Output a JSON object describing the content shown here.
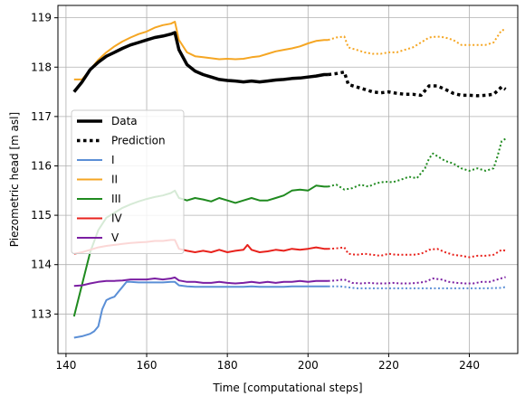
{
  "chart_data": {
    "type": "line",
    "title": "",
    "xlabel": "Time [computational steps]",
    "ylabel": "Piezometric head [m asl]",
    "xlim": [
      138,
      252
    ],
    "ylim": [
      112.2,
      119.25
    ],
    "xticks": [
      140,
      160,
      180,
      200,
      220,
      240
    ],
    "yticks": [
      113,
      114,
      115,
      116,
      117,
      118,
      119
    ],
    "grid": true,
    "legend_position": "center-left",
    "legend": [
      {
        "label": "Data",
        "style": "solid-thick",
        "color": "#000000"
      },
      {
        "label": "Prediction",
        "style": "dotted-thick",
        "color": "#000000"
      },
      {
        "label": "I",
        "style": "solid",
        "color": "#5b8fd6"
      },
      {
        "label": "II",
        "style": "solid",
        "color": "#f5a623"
      },
      {
        "label": "III",
        "style": "solid",
        "color": "#1f8a1f"
      },
      {
        "label": "IV",
        "style": "solid",
        "color": "#e8221c"
      },
      {
        "label": "V",
        "style": "solid",
        "color": "#7b1fa2"
      }
    ],
    "series": [
      {
        "name": "Data",
        "color": "#000000",
        "style": "solid-thick",
        "x": [
          142,
          144,
          146,
          148,
          150,
          152,
          154,
          156,
          158,
          160,
          162,
          164,
          166,
          167,
          168,
          170,
          172,
          174,
          176,
          178,
          180,
          182,
          184,
          186,
          188,
          190,
          192,
          194,
          196,
          198,
          200,
          202,
          204,
          205
        ],
        "y": [
          117.5,
          117.7,
          117.95,
          118.1,
          118.22,
          118.3,
          118.38,
          118.45,
          118.5,
          118.55,
          118.6,
          118.63,
          118.67,
          118.7,
          118.35,
          118.05,
          117.92,
          117.85,
          117.8,
          117.75,
          117.73,
          117.72,
          117.7,
          117.72,
          117.7,
          117.72,
          117.74,
          117.75,
          117.77,
          117.78,
          117.8,
          117.82,
          117.85,
          117.85
        ]
      },
      {
        "name": "Prediction",
        "color": "#000000",
        "style": "dotted-thick",
        "x": [
          205,
          207,
          209,
          210,
          212,
          214,
          216,
          218,
          220,
          222,
          224,
          226,
          228,
          230,
          232,
          234,
          236,
          238,
          240,
          242,
          244,
          246,
          248,
          249
        ],
        "y": [
          117.85,
          117.87,
          117.9,
          117.65,
          117.6,
          117.55,
          117.5,
          117.48,
          117.5,
          117.47,
          117.45,
          117.45,
          117.43,
          117.62,
          117.62,
          117.55,
          117.47,
          117.43,
          117.43,
          117.42,
          117.43,
          117.45,
          117.6,
          117.55
        ]
      },
      {
        "name": "I",
        "color": "#5b8fd6",
        "style": "solid",
        "x": [
          142,
          144,
          146,
          147,
          148,
          149,
          150,
          151,
          152,
          153,
          154,
          155,
          156,
          158,
          160,
          162,
          164,
          166,
          167,
          168,
          170,
          172,
          174,
          176,
          178,
          180,
          182,
          184,
          186,
          188,
          190,
          192,
          194,
          196,
          198,
          200,
          202,
          204,
          205
        ],
        "y": [
          112.52,
          112.55,
          112.6,
          112.65,
          112.75,
          113.1,
          113.28,
          113.32,
          113.35,
          113.45,
          113.55,
          113.65,
          113.65,
          113.64,
          113.64,
          113.64,
          113.64,
          113.65,
          113.65,
          113.58,
          113.56,
          113.55,
          113.55,
          113.55,
          113.55,
          113.55,
          113.55,
          113.55,
          113.56,
          113.55,
          113.55,
          113.55,
          113.55,
          113.56,
          113.56,
          113.56,
          113.56,
          113.56,
          113.56
        ]
      },
      {
        "name": "I-pred",
        "color": "#5b8fd6",
        "style": "dotted",
        "x": [
          205,
          208,
          212,
          216,
          220,
          224,
          228,
          232,
          236,
          240,
          244,
          248,
          249
        ],
        "y": [
          113.56,
          113.56,
          113.52,
          113.52,
          113.52,
          113.52,
          113.52,
          113.52,
          113.52,
          113.52,
          113.52,
          113.53,
          113.55
        ]
      },
      {
        "name": "II",
        "color": "#f5a623",
        "style": "solid",
        "x": [
          142,
          144,
          146,
          148,
          150,
          152,
          154,
          156,
          158,
          160,
          162,
          164,
          166,
          167,
          168,
          170,
          172,
          174,
          176,
          178,
          180,
          182,
          184,
          186,
          188,
          190,
          192,
          194,
          196,
          198,
          200,
          202,
          204,
          205
        ],
        "y": [
          117.75,
          117.75,
          117.95,
          118.15,
          118.3,
          118.42,
          118.52,
          118.6,
          118.67,
          118.72,
          118.8,
          118.85,
          118.88,
          118.92,
          118.55,
          118.3,
          118.22,
          118.2,
          118.18,
          118.16,
          118.17,
          118.16,
          118.17,
          118.2,
          118.22,
          118.27,
          118.32,
          118.35,
          118.38,
          118.42,
          118.48,
          118.53,
          118.55,
          118.55
        ]
      },
      {
        "name": "II-pred",
        "color": "#f5a623",
        "style": "dotted",
        "x": [
          205,
          207,
          209,
          210,
          212,
          214,
          216,
          218,
          220,
          222,
          224,
          226,
          228,
          230,
          232,
          234,
          236,
          238,
          240,
          242,
          244,
          246,
          248,
          249
        ],
        "y": [
          118.55,
          118.6,
          118.62,
          118.4,
          118.35,
          118.3,
          118.27,
          118.27,
          118.3,
          118.3,
          118.35,
          118.4,
          118.5,
          118.6,
          118.62,
          118.6,
          118.55,
          118.45,
          118.45,
          118.45,
          118.45,
          118.5,
          118.75,
          118.75
        ]
      },
      {
        "name": "III",
        "color": "#1f8a1f",
        "style": "solid",
        "x": [
          142,
          144,
          146,
          148,
          150,
          152,
          154,
          156,
          158,
          160,
          162,
          164,
          166,
          167,
          168,
          170,
          172,
          174,
          176,
          178,
          180,
          182,
          184,
          186,
          188,
          190,
          192,
          194,
          196,
          198,
          200,
          202,
          204,
          205
        ],
        "y": [
          112.95,
          113.6,
          114.25,
          114.7,
          114.95,
          115.05,
          115.15,
          115.22,
          115.28,
          115.33,
          115.37,
          115.4,
          115.45,
          115.5,
          115.35,
          115.3,
          115.35,
          115.32,
          115.28,
          115.35,
          115.3,
          115.25,
          115.3,
          115.35,
          115.3,
          115.3,
          115.35,
          115.4,
          115.5,
          115.52,
          115.5,
          115.6,
          115.58,
          115.58
        ]
      },
      {
        "name": "III-pred",
        "color": "#1f8a1f",
        "style": "dotted",
        "x": [
          205,
          207,
          209,
          211,
          213,
          215,
          217,
          219,
          221,
          223,
          225,
          227,
          229,
          230,
          231,
          232,
          234,
          236,
          238,
          240,
          242,
          244,
          246,
          247,
          248,
          249
        ],
        "y": [
          115.58,
          115.62,
          115.52,
          115.55,
          115.62,
          115.58,
          115.65,
          115.68,
          115.67,
          115.72,
          115.78,
          115.75,
          115.95,
          116.15,
          116.25,
          116.2,
          116.1,
          116.05,
          115.95,
          115.9,
          115.95,
          115.9,
          115.95,
          116.2,
          116.5,
          116.55
        ]
      },
      {
        "name": "IV",
        "color": "#e8221c",
        "style": "solid",
        "x": [
          142,
          144,
          146,
          148,
          150,
          152,
          154,
          156,
          158,
          160,
          162,
          164,
          166,
          167,
          168,
          170,
          172,
          174,
          176,
          178,
          180,
          182,
          184,
          185,
          186,
          188,
          190,
          192,
          194,
          196,
          198,
          200,
          202,
          204,
          205
        ],
        "y": [
          114.22,
          114.25,
          114.3,
          114.35,
          114.38,
          114.4,
          114.42,
          114.44,
          114.45,
          114.46,
          114.48,
          114.48,
          114.5,
          114.5,
          114.32,
          114.28,
          114.25,
          114.28,
          114.25,
          114.3,
          114.25,
          114.28,
          114.3,
          114.4,
          114.3,
          114.25,
          114.27,
          114.3,
          114.28,
          114.32,
          114.3,
          114.32,
          114.35,
          114.32,
          114.32
        ]
      },
      {
        "name": "IV-pred",
        "color": "#e8221c",
        "style": "dotted",
        "x": [
          205,
          207,
          209,
          210,
          212,
          214,
          216,
          218,
          220,
          222,
          224,
          226,
          228,
          230,
          232,
          234,
          236,
          238,
          240,
          242,
          244,
          246,
          248,
          249
        ],
        "y": [
          114.32,
          114.33,
          114.35,
          114.22,
          114.2,
          114.22,
          114.2,
          114.18,
          114.22,
          114.2,
          114.2,
          114.2,
          114.22,
          114.3,
          114.32,
          114.25,
          114.2,
          114.18,
          114.15,
          114.18,
          114.18,
          114.2,
          114.3,
          114.28
        ]
      },
      {
        "name": "V",
        "color": "#7b1fa2",
        "style": "solid",
        "x": [
          142,
          144,
          146,
          148,
          150,
          152,
          154,
          156,
          158,
          160,
          162,
          164,
          166,
          167,
          168,
          170,
          172,
          174,
          176,
          178,
          180,
          182,
          184,
          186,
          188,
          190,
          192,
          194,
          196,
          198,
          200,
          202,
          204,
          205
        ],
        "y": [
          113.57,
          113.58,
          113.62,
          113.65,
          113.67,
          113.67,
          113.68,
          113.7,
          113.7,
          113.7,
          113.72,
          113.7,
          113.72,
          113.74,
          113.68,
          113.65,
          113.65,
          113.63,
          113.63,
          113.65,
          113.63,
          113.62,
          113.63,
          113.65,
          113.63,
          113.65,
          113.63,
          113.65,
          113.65,
          113.67,
          113.65,
          113.67,
          113.67,
          113.67
        ]
      },
      {
        "name": "V-pred",
        "color": "#7b1fa2",
        "style": "dotted",
        "x": [
          205,
          207,
          209,
          211,
          213,
          215,
          217,
          219,
          221,
          223,
          225,
          227,
          229,
          231,
          233,
          235,
          237,
          239,
          241,
          243,
          245,
          247,
          249
        ],
        "y": [
          113.67,
          113.68,
          113.7,
          113.63,
          113.62,
          113.63,
          113.62,
          113.62,
          113.63,
          113.62,
          113.62,
          113.63,
          113.65,
          113.72,
          113.7,
          113.65,
          113.63,
          113.62,
          113.62,
          113.65,
          113.65,
          113.7,
          113.75
        ]
      }
    ]
  }
}
